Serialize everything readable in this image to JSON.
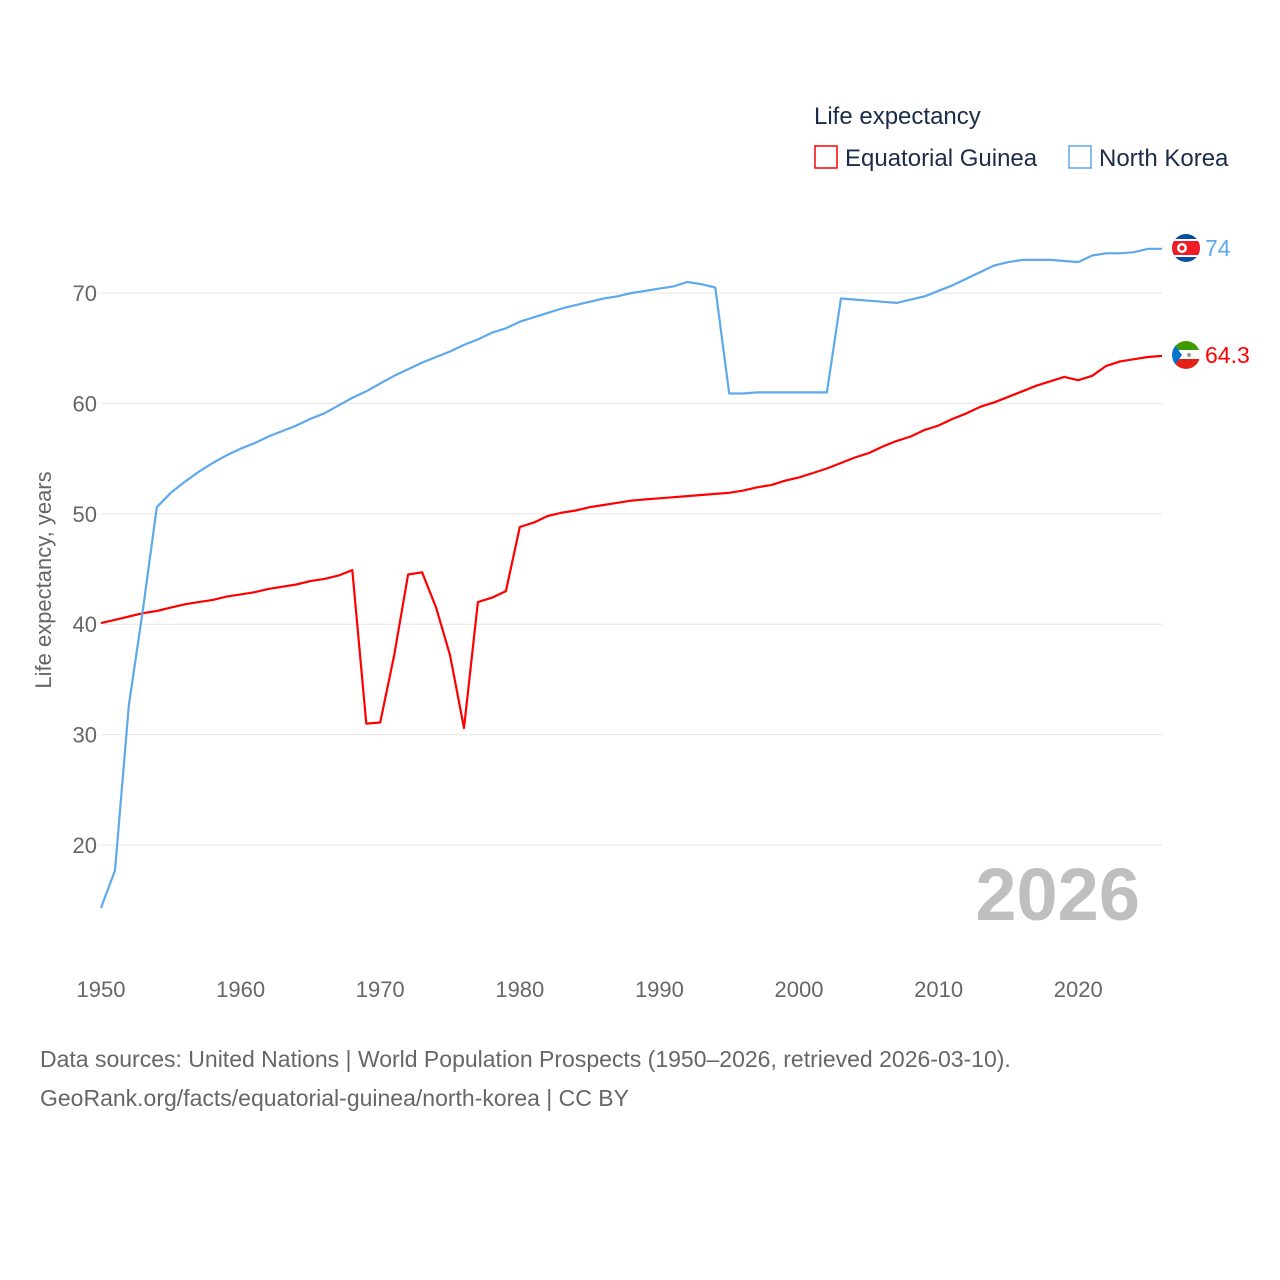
{
  "chart_data": {
    "type": "line",
    "title": "Life expectancy",
    "xlabel": "",
    "ylabel": "Life expectancy, years",
    "xlim": [
      1950,
      2026
    ],
    "ylim": [
      12,
      76
    ],
    "x_ticks": [
      "1950",
      "1960",
      "1970",
      "1980",
      "1990",
      "2000",
      "2010",
      "2020"
    ],
    "y_ticks": [
      "20",
      "30",
      "40",
      "50",
      "60",
      "70"
    ],
    "grid": true,
    "legend_placement": "top-right",
    "year_label": "2026",
    "x": [
      1950,
      1951,
      1952,
      1953,
      1954,
      1955,
      1956,
      1957,
      1958,
      1959,
      1960,
      1961,
      1962,
      1963,
      1964,
      1965,
      1966,
      1967,
      1968,
      1969,
      1970,
      1971,
      1972,
      1973,
      1974,
      1975,
      1976,
      1977,
      1978,
      1979,
      1980,
      1981,
      1982,
      1983,
      1984,
      1985,
      1986,
      1987,
      1988,
      1989,
      1990,
      1991,
      1992,
      1993,
      1994,
      1995,
      1996,
      1997,
      1998,
      1999,
      2000,
      2001,
      2002,
      2003,
      2004,
      2005,
      2006,
      2007,
      2008,
      2009,
      2010,
      2011,
      2012,
      2013,
      2014,
      2015,
      2016,
      2017,
      2018,
      2019,
      2020,
      2021,
      2022,
      2023,
      2024,
      2025,
      2026
    ],
    "series": [
      {
        "name": "Equatorial Guinea",
        "color": "#ff0000",
        "end_label": "64.3",
        "values": [
          40.1,
          40.4,
          40.7,
          41.0,
          41.2,
          41.5,
          41.8,
          42.0,
          42.2,
          42.5,
          42.7,
          42.9,
          43.2,
          43.4,
          43.6,
          43.9,
          44.1,
          44.4,
          44.9,
          31.0,
          31.1,
          37.2,
          44.5,
          44.7,
          41.5,
          37.2,
          30.6,
          42.0,
          42.4,
          43.0,
          48.8,
          49.2,
          49.8,
          50.1,
          50.3,
          50.6,
          50.8,
          51.0,
          51.2,
          51.3,
          51.4,
          51.5,
          51.6,
          51.7,
          51.8,
          51.9,
          52.1,
          52.4,
          52.6,
          53.0,
          53.3,
          53.7,
          54.1,
          54.6,
          55.1,
          55.5,
          56.1,
          56.6,
          57.0,
          57.6,
          58.0,
          58.6,
          59.1,
          59.7,
          60.1,
          60.6,
          61.1,
          61.6,
          62.0,
          62.4,
          62.1,
          62.5,
          63.4,
          63.8,
          64.0,
          64.2,
          64.3
        ]
      },
      {
        "name": "North Korea",
        "color": "#5ea9ea",
        "end_label": "74",
        "values": [
          14.3,
          17.7,
          32.7,
          41.3,
          50.6,
          51.9,
          52.9,
          53.8,
          54.6,
          55.3,
          55.9,
          56.4,
          57.0,
          57.5,
          58.0,
          58.6,
          59.1,
          59.8,
          60.5,
          61.1,
          61.8,
          62.5,
          63.1,
          63.7,
          64.2,
          64.7,
          65.3,
          65.8,
          66.4,
          66.8,
          67.4,
          67.8,
          68.2,
          68.6,
          68.9,
          69.2,
          69.5,
          69.7,
          70.0,
          70.2,
          70.4,
          70.6,
          71.0,
          70.8,
          70.5,
          60.9,
          60.9,
          61.0,
          61.0,
          61.0,
          61.0,
          61.0,
          61.0,
          69.5,
          69.4,
          69.3,
          69.2,
          69.1,
          69.4,
          69.7,
          70.2,
          70.7,
          71.3,
          71.9,
          72.5,
          72.8,
          73.0,
          73.0,
          73.0,
          72.9,
          72.8,
          73.4,
          73.6,
          73.6,
          73.7,
          74.0,
          74.0
        ]
      }
    ]
  },
  "footer": {
    "line1": "Data sources: United Nations | World Population Prospects (1950–2026, retrieved 2026-03-10).",
    "line2": "GeoRank.org/facts/equatorial-guinea/north-korea | CC BY"
  }
}
